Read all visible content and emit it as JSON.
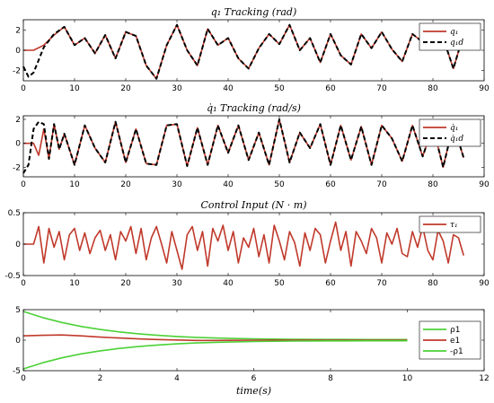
{
  "chart_data": [
    {
      "type": "line",
      "title": "q₁ Tracking (rad)",
      "xlim": [
        0,
        90
      ],
      "ylim": [
        -3,
        3
      ],
      "xticks": [
        "0",
        "10",
        "20",
        "30",
        "40",
        "50",
        "60",
        "70",
        "80",
        "90"
      ],
      "yticks": [
        "2",
        "0",
        "-2"
      ],
      "ytick_values": [
        2,
        0,
        -2
      ],
      "legend_position": "top-right",
      "series": [
        {
          "name": "q₁",
          "color": "#c0392b",
          "style": "solid",
          "x": [
            0,
            2,
            4,
            6,
            8,
            10,
            12,
            14,
            16,
            18,
            20,
            22,
            24,
            26,
            28,
            30,
            32,
            34,
            36,
            38,
            40,
            42,
            44,
            46,
            48,
            50,
            52,
            54,
            56,
            58,
            60,
            62,
            64,
            66,
            68,
            70,
            72,
            74,
            76,
            78,
            80,
            82,
            84,
            86
          ],
          "y": [
            0,
            0,
            0.5,
            1.5,
            2.3,
            0.5,
            1.2,
            -0.3,
            1.5,
            -0.8,
            1.8,
            1.4,
            -1.5,
            -2.8,
            0.5,
            2.5,
            0,
            -1.5,
            2.1,
            0.5,
            1.2,
            -0.8,
            -1.8,
            0.2,
            1.6,
            0.6,
            2.5,
            0,
            1.2,
            -1.2,
            1.6,
            -0.5,
            -1.4,
            1.6,
            0.2,
            1.8,
            0.1,
            -1.1,
            1.6,
            0.8,
            1.6,
            1.2,
            -1.8,
            1.6
          ]
        },
        {
          "name": "q₁d",
          "color": "#000000",
          "style": "dashed",
          "x": [
            0,
            1,
            2,
            4,
            6,
            8,
            10,
            12,
            14,
            16,
            18,
            20,
            22,
            24,
            26,
            28,
            30,
            32,
            34,
            36,
            38,
            40,
            42,
            44,
            46,
            48,
            50,
            52,
            54,
            56,
            58,
            60,
            62,
            64,
            66,
            68,
            70,
            72,
            74,
            76,
            78,
            80,
            82,
            84,
            86
          ],
          "y": [
            -1.6,
            -2.6,
            -2.2,
            0.3,
            1.6,
            2.3,
            0.5,
            1.2,
            -0.3,
            1.5,
            -0.8,
            1.8,
            1.4,
            -1.5,
            -2.8,
            0.5,
            2.5,
            0,
            -1.5,
            2.1,
            0.5,
            1.2,
            -0.8,
            -1.8,
            0.2,
            1.6,
            0.6,
            2.5,
            0,
            1.2,
            -1.2,
            1.6,
            -0.5,
            -1.4,
            1.6,
            0.2,
            1.8,
            0.1,
            -1.1,
            1.6,
            0.8,
            1.6,
            1.2,
            -1.8,
            1.6
          ]
        }
      ]
    },
    {
      "type": "line",
      "title": "q̇₁ Tracking (rad/s)",
      "xlim": [
        0,
        90
      ],
      "ylim": [
        -2.8,
        2.3
      ],
      "xticks": [
        "0",
        "10",
        "20",
        "30",
        "40",
        "50",
        "60",
        "70",
        "80",
        "90"
      ],
      "yticks": [
        "2",
        "0",
        "-2"
      ],
      "ytick_values": [
        2,
        0,
        -2
      ],
      "legend_position": "top-right",
      "series": [
        {
          "name": "q̇₁",
          "color": "#c0392b",
          "style": "solid",
          "x": [
            0,
            2,
            3,
            4,
            5,
            6,
            7,
            8,
            10,
            12,
            14,
            16,
            18,
            20,
            22,
            24,
            26,
            28,
            30,
            32,
            34,
            36,
            38,
            40,
            42,
            44,
            46,
            48,
            50,
            52,
            54,
            56,
            58,
            60,
            62,
            64,
            66,
            68,
            70,
            72,
            74,
            76,
            78,
            80,
            82,
            84,
            86
          ],
          "y": [
            0,
            0,
            -1,
            1.2,
            -1.3,
            1.6,
            -0.5,
            0.8,
            -1.8,
            1.5,
            -0.4,
            -1.6,
            1.8,
            -1.6,
            1.2,
            -1.7,
            -1.8,
            1.5,
            1.6,
            -1.9,
            1.3,
            -1.8,
            1.5,
            -0.8,
            1.5,
            -1.4,
            0.9,
            -1.8,
            2,
            -1.6,
            0.9,
            -0.4,
            1.6,
            -1.8,
            1.5,
            -1.4,
            1.4,
            -1.8,
            1.5,
            0.4,
            -1.5,
            1.5,
            -1.1,
            1.4,
            -2,
            1.6,
            -1.2
          ]
        },
        {
          "name": "q̇₁d",
          "color": "#000000",
          "style": "dashed",
          "x": [
            0,
            1,
            2,
            3,
            4,
            5,
            6,
            7,
            8,
            10,
            12,
            14,
            16,
            18,
            20,
            22,
            24,
            26,
            28,
            30,
            32,
            34,
            36,
            38,
            40,
            42,
            44,
            46,
            48,
            50,
            52,
            54,
            56,
            58,
            60,
            62,
            64,
            66,
            68,
            70,
            72,
            74,
            76,
            78,
            80,
            82,
            84,
            86
          ],
          "y": [
            -2.5,
            -1.8,
            1.2,
            1.8,
            1.6,
            -1.3,
            1.6,
            -0.5,
            0.8,
            -1.8,
            1.5,
            -0.4,
            -1.6,
            1.8,
            -1.6,
            1.2,
            -1.7,
            -1.8,
            1.5,
            1.6,
            -1.9,
            1.3,
            -1.8,
            1.5,
            -0.8,
            1.5,
            -1.4,
            0.9,
            -1.8,
            2,
            -1.6,
            0.9,
            -0.4,
            1.6,
            -1.8,
            1.5,
            -1.4,
            1.4,
            -1.8,
            1.5,
            0.4,
            -1.5,
            1.5,
            -1.1,
            1.4,
            -2,
            1.6,
            -1.2
          ]
        }
      ]
    },
    {
      "type": "line",
      "title": "Control Input (N · m)",
      "xlim": [
        0,
        90
      ],
      "ylim": [
        -0.5,
        0.5
      ],
      "xticks": [
        "0",
        "10",
        "20",
        "30",
        "40",
        "50",
        "60",
        "70",
        "80",
        "90"
      ],
      "yticks": [
        "0.5",
        "0",
        "-0.5"
      ],
      "ytick_values": [
        0.5,
        0,
        -0.5
      ],
      "legend_position": "top-right",
      "series": [
        {
          "name": "τ₁",
          "color": "#c0392b",
          "style": "solid",
          "x": [
            0,
            2,
            3,
            4,
            5,
            6,
            7,
            8,
            9,
            10,
            11,
            12,
            13,
            14,
            15,
            16,
            17,
            18,
            19,
            20,
            21,
            22,
            23,
            24,
            25,
            26,
            27,
            28,
            29,
            30,
            31,
            32,
            33,
            34,
            35,
            36,
            37,
            38,
            39,
            40,
            41,
            42,
            43,
            44,
            45,
            46,
            47,
            48,
            49,
            50,
            51,
            52,
            53,
            54,
            55,
            56,
            57,
            58,
            59,
            60,
            61,
            62,
            63,
            64,
            65,
            66,
            67,
            68,
            69,
            70,
            71,
            72,
            73,
            74,
            75,
            76,
            77,
            78,
            79,
            80,
            81,
            82,
            83,
            84,
            85,
            86
          ],
          "y": [
            0,
            0,
            0.28,
            -0.3,
            0.25,
            -0.05,
            0.2,
            -0.25,
            0.15,
            0.25,
            -0.1,
            0.18,
            -0.15,
            0.1,
            0.22,
            -0.1,
            0.15,
            -0.25,
            0.2,
            0.05,
            0.28,
            -0.15,
            0.25,
            -0.25,
            0.1,
            0.28,
            0.0,
            -0.3,
            0.2,
            -0.1,
            -0.4,
            0.15,
            0.28,
            -0.1,
            0.2,
            -0.35,
            0.25,
            0.05,
            0.3,
            -0.1,
            0.2,
            -0.3,
            0.1,
            -0.05,
            0.25,
            -0.2,
            0.15,
            -0.3,
            0.3,
            0.05,
            -0.25,
            0.2,
            0.02,
            -0.35,
            0.18,
            -0.1,
            0.25,
            0.15,
            -0.3,
            0.05,
            0.35,
            -0.1,
            0.2,
            -0.35,
            0.2,
            0.05,
            -0.15,
            0.25,
            0.1,
            -0.3,
            0.18,
            0.0,
            0.25,
            -0.15,
            -0.2,
            0.2,
            -0.05,
            0.28,
            -0.1,
            -0.25,
            0.22,
            0.05,
            -0.3,
            0.15,
            0.1,
            -0.18
          ]
        }
      ]
    },
    {
      "type": "line",
      "title": "",
      "xlabel": "time(s)",
      "xlim": [
        0,
        12
      ],
      "ylim": [
        -5,
        5
      ],
      "xticks": [
        "0",
        "2",
        "4",
        "6",
        "8",
        "10",
        "12"
      ],
      "yticks": [
        "5",
        "0",
        "-5"
      ],
      "ytick_values": [
        5,
        0,
        -5
      ],
      "legend_position": "right",
      "series": [
        {
          "name": "ρ1",
          "color": "#4cd137",
          "style": "solid",
          "x": [
            0,
            0.5,
            1,
            1.5,
            2,
            2.5,
            3,
            3.5,
            4,
            4.5,
            5,
            6,
            7,
            8,
            9,
            10
          ],
          "y": [
            4.7,
            3.7,
            2.9,
            2.25,
            1.75,
            1.35,
            1.05,
            0.8,
            0.6,
            0.45,
            0.35,
            0.22,
            0.15,
            0.12,
            0.1,
            0.1
          ]
        },
        {
          "name": "e1",
          "color": "#c0392b",
          "style": "solid",
          "x": [
            0,
            0.5,
            1,
            1.5,
            2,
            2.5,
            3,
            3.5,
            4,
            4.5,
            5,
            6,
            7,
            8,
            9,
            10
          ],
          "y": [
            0.7,
            0.8,
            0.85,
            0.7,
            0.5,
            0.35,
            0.2,
            0.1,
            0.03,
            -0.05,
            -0.05,
            0,
            0,
            0,
            0,
            0
          ]
        },
        {
          "name": "-ρ1",
          "color": "#4cd137",
          "style": "solid",
          "x": [
            0,
            0.5,
            1,
            1.5,
            2,
            2.5,
            3,
            3.5,
            4,
            4.5,
            5,
            6,
            7,
            8,
            9,
            10
          ],
          "y": [
            -4.7,
            -3.7,
            -2.9,
            -2.25,
            -1.75,
            -1.35,
            -1.05,
            -0.8,
            -0.6,
            -0.45,
            -0.35,
            -0.22,
            -0.15,
            -0.12,
            -0.1,
            -0.1
          ]
        }
      ]
    }
  ]
}
